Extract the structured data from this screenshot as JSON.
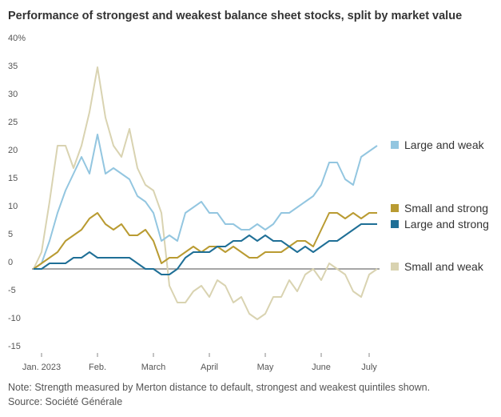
{
  "chart_data": {
    "type": "line",
    "title": "Performance of strongest and weakest balance sheet stocks, split by market value",
    "note": "Note: Strength measured by Merton distance to default, strongest and weakest quintiles shown.",
    "source": "Source: Société Générale",
    "categories": [
      null,
      "Jan. 2023",
      null,
      null,
      null,
      null,
      null,
      null,
      "Feb.",
      null,
      null,
      null,
      null,
      null,
      null,
      "March",
      null,
      null,
      null,
      null,
      null,
      null,
      "April",
      null,
      null,
      null,
      null,
      null,
      null,
      "May",
      null,
      null,
      null,
      null,
      null,
      null,
      "June",
      null,
      null,
      null,
      null,
      null,
      "July",
      null
    ],
    "series": [
      {
        "name": "Large and weak",
        "color": "#93c6e0",
        "values": [
          0,
          1,
          5,
          10,
          14,
          17,
          20,
          17,
          24,
          17,
          18,
          17,
          16,
          13,
          12,
          10,
          5,
          6,
          5,
          10,
          11,
          12,
          10,
          10,
          8,
          8,
          7,
          7,
          8,
          7,
          8,
          10,
          10,
          11,
          12,
          13,
          15,
          19,
          19,
          16,
          15,
          20,
          21,
          22
        ]
      },
      {
        "name": "Small and strong",
        "color": "#b99b32",
        "values": [
          0,
          1,
          2,
          3,
          5,
          6,
          7,
          9,
          10,
          8,
          7,
          8,
          6,
          6,
          7,
          5,
          1,
          2,
          2,
          3,
          4,
          3,
          4,
          4,
          3,
          4,
          3,
          2,
          2,
          3,
          3,
          3,
          4,
          5,
          5,
          4,
          7,
          10,
          10,
          9,
          10,
          9,
          10,
          10
        ]
      },
      {
        "name": "Large and strong",
        "color": "#1f6f96",
        "values": [
          0,
          0,
          1,
          1,
          1,
          2,
          2,
          3,
          2,
          2,
          2,
          2,
          2,
          1,
          0,
          0,
          -1,
          -1,
          0,
          2,
          3,
          3,
          3,
          4,
          4,
          5,
          5,
          6,
          5,
          6,
          5,
          5,
          4,
          3,
          4,
          3,
          4,
          5,
          5,
          6,
          7,
          8,
          8,
          8
        ]
      },
      {
        "name": "Small and weak",
        "color": "#d9d3b1",
        "values": [
          0,
          3,
          12,
          22,
          22,
          18,
          22,
          28,
          36,
          27,
          22,
          20,
          25,
          18,
          15,
          14,
          10,
          -3,
          -6,
          -6,
          -4,
          -3,
          -5,
          -2,
          -3,
          -6,
          -5,
          -8,
          -9,
          -8,
          -5,
          -5,
          -2,
          -4,
          -1,
          0,
          -2,
          1,
          0,
          -1,
          -4,
          -5,
          -1,
          0
        ]
      }
    ],
    "ylim": [
      -15,
      40
    ],
    "yticks": [
      {
        "value": 40,
        "label": "40%"
      },
      35,
      30,
      25,
      20,
      15,
      10,
      5,
      0,
      -5,
      -10,
      -15
    ]
  }
}
